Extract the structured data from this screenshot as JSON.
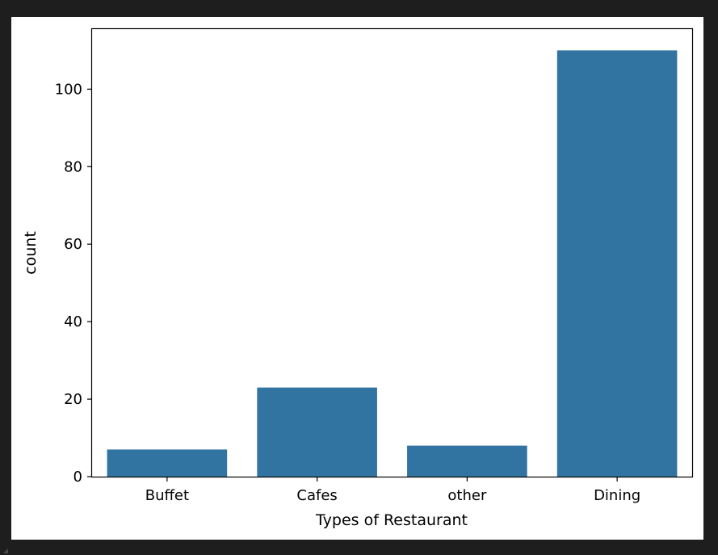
{
  "chart_data": {
    "type": "bar",
    "categories": [
      "Buffet",
      "Cafes",
      "other",
      "Dining"
    ],
    "values": [
      7,
      23,
      8,
      110
    ],
    "title": "",
    "xlabel": "Types of Restaurant",
    "ylabel": "count",
    "ylim": [
      0,
      115.5
    ],
    "yticks": [
      0,
      20,
      40,
      60,
      80,
      100
    ],
    "bar_color": "#3274a1",
    "grid": false
  }
}
